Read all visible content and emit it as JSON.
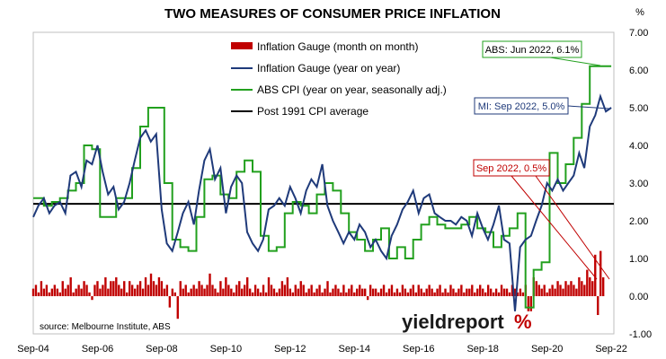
{
  "chart_data": {
    "type": "bar+line",
    "title": "TWO MEASURES OF CONSUMER PRICE INFLATION",
    "ylabel": "%",
    "ylim": [
      -1.0,
      7.0
    ],
    "yticks": [
      "-1.00",
      "0.00",
      "1.00",
      "2.00",
      "3.00",
      "4.00",
      "5.00",
      "6.00",
      "7.00"
    ],
    "ytick_values": [
      -1,
      0,
      1,
      2,
      3,
      4,
      5,
      6,
      7
    ],
    "xlim": [
      2004.67,
      2022.75
    ],
    "xticks": [
      "Sep-04",
      "Sep-06",
      "Sep-08",
      "Sep-10",
      "Sep-12",
      "Sep-14",
      "Sep-16",
      "Sep-18",
      "Sep-20",
      "Sep-22"
    ],
    "xtick_values": [
      2004.67,
      2006.67,
      2008.67,
      2010.67,
      2012.67,
      2014.67,
      2016.67,
      2018.67,
      2020.67,
      2022.67
    ],
    "grid": false,
    "legend_position": "top-center",
    "reference_line": {
      "name": "Post 1991 CPI average",
      "value": 2.45
    },
    "series": [
      {
        "name": "Inflation Gauge (month on month)",
        "kind": "bar",
        "color": "#c00000",
        "x_start": 2004.67,
        "x_step": 0.08333,
        "values": [
          0.2,
          0.3,
          0.1,
          0.4,
          0.2,
          0.3,
          0.1,
          0.2,
          0.3,
          0.2,
          0.1,
          0.4,
          0.2,
          0.3,
          0.5,
          0.1,
          0.2,
          0.3,
          0.2,
          0.4,
          0.3,
          0.1,
          -0.1,
          0.3,
          0.4,
          0.2,
          0.3,
          0.5,
          0.2,
          0.4,
          0.4,
          0.5,
          0.3,
          0.2,
          0.4,
          0.1,
          0.4,
          0.3,
          0.2,
          0.3,
          0.4,
          0.2,
          0.5,
          0.3,
          0.6,
          0.4,
          0.3,
          0.5,
          0.4,
          0.2,
          0.3,
          -0.3,
          0.2,
          0.1,
          -0.6,
          0.4,
          0.2,
          0.3,
          0.1,
          0.2,
          0.3,
          0.2,
          0.4,
          0.3,
          0.2,
          0.3,
          0.6,
          0.3,
          0.2,
          0.1,
          0.4,
          0.2,
          0.5,
          0.3,
          0.2,
          0.1,
          0.3,
          0.4,
          0.2,
          0.3,
          0.5,
          0.2,
          0.1,
          0.3,
          0.2,
          0.1,
          0.3,
          0.1,
          0.5,
          0.3,
          0.2,
          0.1,
          0.2,
          0.4,
          0.3,
          0.5,
          0.2,
          0.1,
          0.3,
          0.2,
          0.4,
          0.3,
          0.1,
          0.2,
          0.3,
          0.1,
          0.2,
          0.3,
          0.1,
          0.2,
          0.4,
          0.1,
          0.2,
          0.3,
          0.2,
          0.1,
          0.3,
          0.1,
          0.2,
          0.3,
          0.1,
          0.2,
          0.3,
          0.2,
          0.2,
          -0.1,
          0.3,
          0.2,
          0.2,
          0.1,
          0.2,
          0.3,
          0.1,
          0.2,
          0.3,
          0.1,
          0.2,
          0.1,
          0.3,
          0.2,
          0.1,
          0.2,
          0.3,
          0.1,
          0.3,
          0.2,
          0.1,
          0.2,
          0.3,
          0.2,
          0.1,
          0.2,
          0.3,
          0.1,
          0.2,
          0.1,
          0.3,
          0.2,
          0.1,
          0.2,
          0.3,
          0.1,
          0.2,
          0.2,
          0.3,
          0.1,
          0.2,
          0.3,
          0.2,
          0.1,
          0.3,
          0.2,
          0.1,
          0.2,
          0.1,
          0.3,
          0.2,
          0.2,
          0.1,
          0.3,
          0.2,
          0.1,
          0.2,
          0.1,
          0.3,
          -0.4,
          -0.4,
          0.5,
          0.4,
          0.3,
          0.2,
          0.3,
          0.1,
          0.2,
          0.3,
          0.2,
          0.4,
          0.3,
          0.2,
          0.4,
          0.3,
          0.4,
          0.3,
          0.2,
          0.5,
          0.4,
          0.3,
          0.7,
          0.5,
          0.4,
          1.1,
          -0.5,
          1.2,
          0.5
        ]
      },
      {
        "name": "Inflation Gauge (year on year)",
        "kind": "line",
        "color": "#1f3a7a",
        "x": [
          2004.67,
          2004.83,
          2005.0,
          2005.17,
          2005.33,
          2005.5,
          2005.67,
          2005.83,
          2006.0,
          2006.17,
          2006.33,
          2006.5,
          2006.67,
          2006.83,
          2007.0,
          2007.17,
          2007.33,
          2007.5,
          2007.67,
          2007.83,
          2008.0,
          2008.17,
          2008.33,
          2008.5,
          2008.67,
          2008.83,
          2009.0,
          2009.17,
          2009.33,
          2009.5,
          2009.67,
          2009.83,
          2010.0,
          2010.17,
          2010.33,
          2010.5,
          2010.67,
          2010.83,
          2011.0,
          2011.17,
          2011.33,
          2011.5,
          2011.67,
          2011.83,
          2012.0,
          2012.17,
          2012.33,
          2012.5,
          2012.67,
          2012.83,
          2013.0,
          2013.17,
          2013.33,
          2013.5,
          2013.67,
          2013.83,
          2014.0,
          2014.17,
          2014.33,
          2014.5,
          2014.67,
          2014.83,
          2015.0,
          2015.17,
          2015.33,
          2015.5,
          2015.67,
          2015.83,
          2016.0,
          2016.17,
          2016.33,
          2016.5,
          2016.67,
          2016.83,
          2017.0,
          2017.17,
          2017.33,
          2017.5,
          2017.67,
          2017.83,
          2018.0,
          2018.17,
          2018.33,
          2018.5,
          2018.67,
          2018.83,
          2019.0,
          2019.17,
          2019.33,
          2019.5,
          2019.67,
          2019.83,
          2020.0,
          2020.17,
          2020.33,
          2020.5,
          2020.67,
          2020.83,
          2021.0,
          2021.17,
          2021.33,
          2021.5,
          2021.67,
          2021.83,
          2022.0,
          2022.17,
          2022.33,
          2022.5,
          2022.67
        ],
        "values": [
          2.1,
          2.4,
          2.6,
          2.2,
          2.4,
          2.5,
          2.2,
          3.2,
          3.3,
          2.9,
          3.6,
          3.5,
          4.0,
          3.3,
          2.7,
          2.9,
          2.3,
          2.5,
          3.0,
          3.6,
          4.2,
          4.4,
          4.1,
          4.3,
          2.3,
          1.4,
          1.2,
          1.7,
          2.2,
          2.5,
          1.9,
          2.8,
          3.6,
          3.9,
          3.1,
          3.4,
          2.2,
          2.9,
          3.2,
          3.0,
          1.7,
          1.4,
          1.2,
          1.5,
          2.3,
          2.4,
          2.6,
          2.4,
          2.9,
          2.6,
          2.2,
          2.8,
          3.1,
          2.9,
          3.5,
          2.4,
          2.0,
          1.7,
          1.4,
          1.7,
          1.5,
          1.9,
          1.7,
          1.3,
          1.5,
          1.2,
          1.0,
          1.6,
          1.9,
          2.3,
          2.5,
          2.8,
          2.2,
          2.6,
          2.7,
          2.2,
          2.1,
          2.0,
          2.0,
          1.9,
          2.1,
          2.0,
          1.6,
          2.2,
          1.8,
          1.5,
          1.9,
          2.4,
          1.5,
          1.4,
          -0.4,
          1.3,
          1.5,
          1.6,
          2.0,
          2.4,
          3.0,
          2.8,
          3.1,
          2.8,
          3.0,
          3.2,
          3.8,
          3.4,
          4.5,
          4.8,
          5.3,
          4.9,
          5.0
        ]
      },
      {
        "name": "ABS CPI (year on year, seasonally adj.)",
        "kind": "step-line",
        "color": "#22a01e",
        "x": [
          2004.67,
          2005.0,
          2005.25,
          2005.5,
          2005.75,
          2006.0,
          2006.25,
          2006.5,
          2006.75,
          2007.0,
          2007.25,
          2007.5,
          2007.75,
          2008.0,
          2008.25,
          2008.5,
          2008.75,
          2009.0,
          2009.25,
          2009.5,
          2009.75,
          2010.0,
          2010.25,
          2010.5,
          2010.75,
          2011.0,
          2011.25,
          2011.5,
          2011.75,
          2012.0,
          2012.25,
          2012.5,
          2012.75,
          2013.0,
          2013.25,
          2013.5,
          2013.75,
          2014.0,
          2014.25,
          2014.5,
          2014.75,
          2015.0,
          2015.25,
          2015.5,
          2015.75,
          2016.0,
          2016.25,
          2016.5,
          2016.75,
          2017.0,
          2017.25,
          2017.5,
          2017.75,
          2018.0,
          2018.25,
          2018.5,
          2018.75,
          2019.0,
          2019.25,
          2019.5,
          2019.75,
          2020.0,
          2020.25,
          2020.5,
          2020.75,
          2021.0,
          2021.25,
          2021.5,
          2021.75,
          2022.0,
          2022.25,
          2022.5
        ],
        "values": [
          2.6,
          2.4,
          2.5,
          2.6,
          2.8,
          3.0,
          4.0,
          3.9,
          2.1,
          2.1,
          2.6,
          2.6,
          3.4,
          4.5,
          5.0,
          5.0,
          3.0,
          1.5,
          1.3,
          1.2,
          2.1,
          3.1,
          3.2,
          2.7,
          2.6,
          3.3,
          3.6,
          3.3,
          1.6,
          1.2,
          1.3,
          2.2,
          2.5,
          2.4,
          2.2,
          2.7,
          3.0,
          2.8,
          2.2,
          1.7,
          1.5,
          1.2,
          1.5,
          1.8,
          1.0,
          1.3,
          1.0,
          1.5,
          1.9,
          2.1,
          1.9,
          1.8,
          1.8,
          1.9,
          2.1,
          1.8,
          1.7,
          1.3,
          1.6,
          1.8,
          2.2,
          -0.3,
          0.7,
          0.9,
          3.8,
          3.0,
          3.5,
          4.2,
          5.1,
          6.1,
          6.1,
          6.1
        ]
      },
      {
        "name": "Post 1991 CPI average",
        "kind": "hline",
        "color": "#000000"
      }
    ],
    "annotations": [
      {
        "text": "ABS: Jun 2022, 6.1%",
        "color": "#22a01e",
        "x": 2022.42,
        "y": 6.1
      },
      {
        "text": "MI: Sep 2022, 5.0%",
        "color": "#1f3a7a",
        "x": 2022.67,
        "y": 5.0
      },
      {
        "text": "Sep 2022, 0.5%",
        "color": "#c00000",
        "x": 2022.67,
        "y": 0.5
      }
    ],
    "source_note": "source: Melbourne Institute, ABS",
    "brand": {
      "part1": "yield",
      "part2": "report",
      "symbol": "%"
    }
  }
}
